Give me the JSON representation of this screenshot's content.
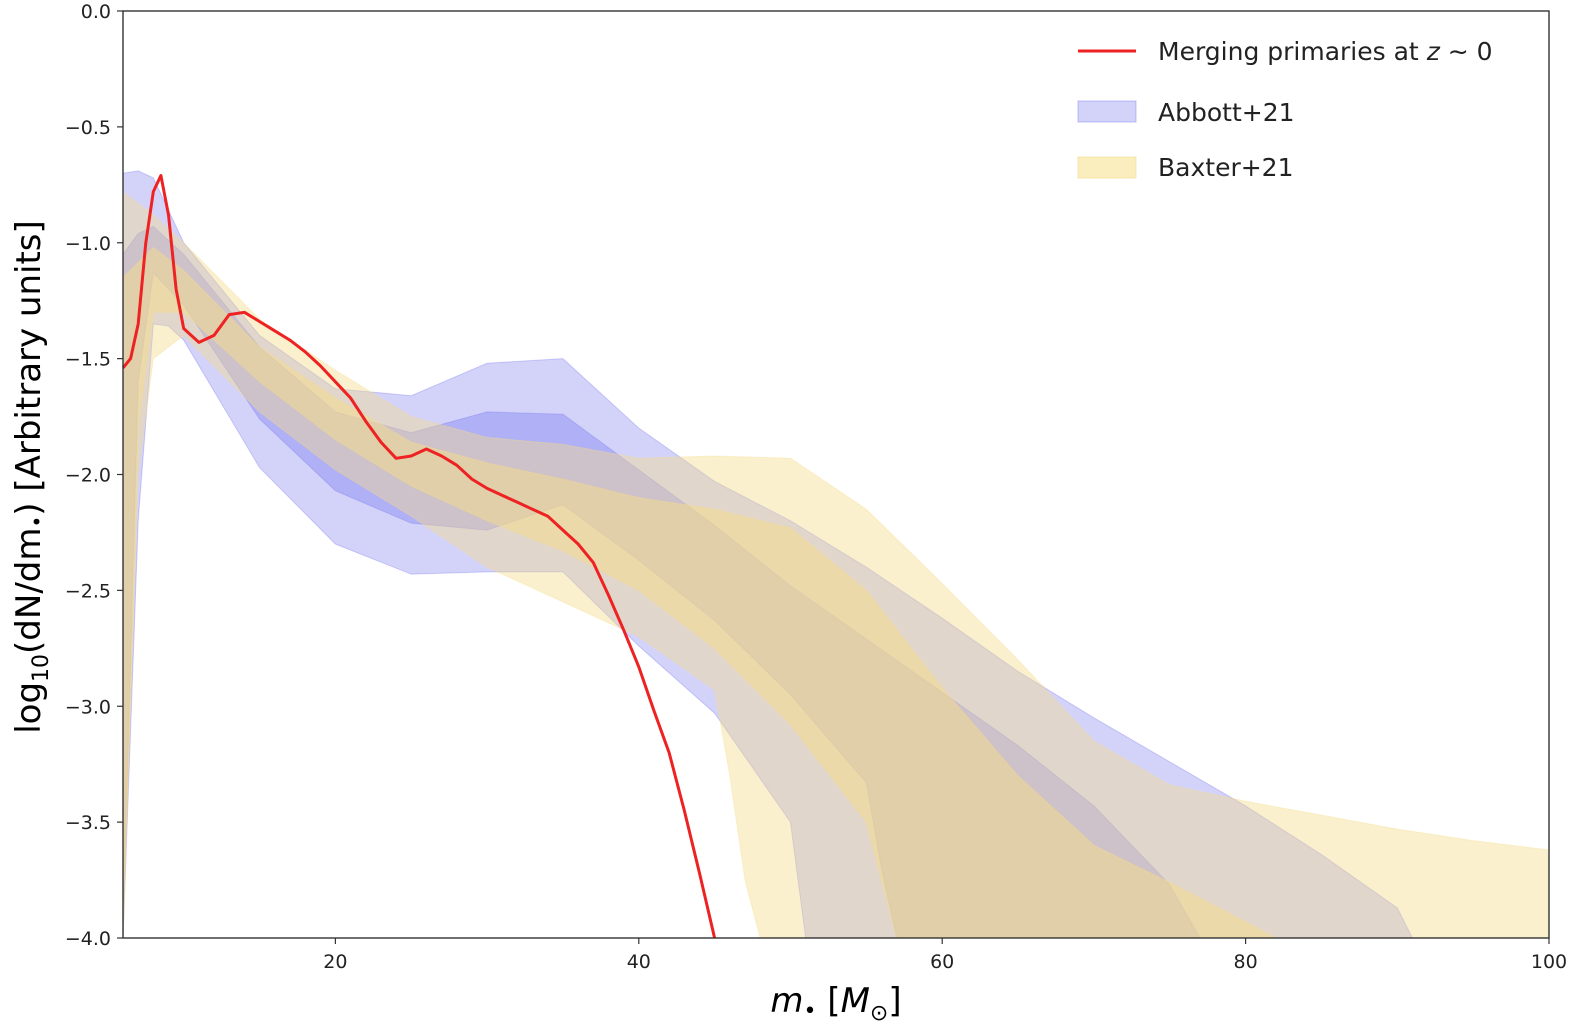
{
  "chart_data": {
    "type": "area",
    "title": "",
    "xlabel_main": "m",
    "xlabel_sub": "•",
    "xlabel_unit_open": " [",
    "xlabel_unit_var": "M",
    "xlabel_unit_sub": "⊙",
    "xlabel_unit_close": "]",
    "ylabel_prefix": "log",
    "ylabel_sub": "10",
    "ylabel_suffix": "(dN/dm",
    "ylabel_dot": "•",
    "ylabel_tail": ") [Arbitrary units]",
    "xlim": [
      6,
      100
    ],
    "ylim": [
      -4.0,
      0.0
    ],
    "xticks": [
      20,
      40,
      60,
      80,
      100
    ],
    "xtick_labels": [
      "20",
      "40",
      "60",
      "80",
      "100"
    ],
    "yticks": [
      0.0,
      -0.5,
      -1.0,
      -1.5,
      -2.0,
      -2.5,
      -3.0,
      -3.5,
      -4.0
    ],
    "ytick_labels": [
      "0.0",
      "−0.5",
      "−1.0",
      "−1.5",
      "−2.0",
      "−2.5",
      "−3.0",
      "−3.5",
      "−4.0"
    ],
    "legend": {
      "position": "top-right",
      "entries": [
        {
          "label_pre": "Merging primaries at ",
          "label_var": "z",
          "label_post": " ∼ 0",
          "kind": "line",
          "color": "#ee2222"
        },
        {
          "label": "Abbott+21",
          "kind": "band",
          "color": "#8080f0"
        },
        {
          "label": "Baxter+21",
          "kind": "band",
          "color": "#f8e7a3"
        }
      ]
    },
    "colors": {
      "abbott": "#7777ee",
      "baxter": "#f5dc8a",
      "line": "#ee2222"
    },
    "series": [
      {
        "name": "Abbott+21 outer band",
        "layer": "abbott",
        "opacity": 0.32,
        "upper": [
          [
            6,
            -0.7
          ],
          [
            7,
            -0.69
          ],
          [
            8,
            -0.72
          ],
          [
            10,
            -1.0
          ],
          [
            15,
            -1.4
          ],
          [
            20,
            -1.63
          ],
          [
            25,
            -1.66
          ],
          [
            30,
            -1.52
          ],
          [
            35,
            -1.5
          ],
          [
            40,
            -1.8
          ],
          [
            45,
            -2.03
          ],
          [
            50,
            -2.2
          ],
          [
            55,
            -2.4
          ],
          [
            60,
            -2.62
          ],
          [
            65,
            -2.85
          ],
          [
            70,
            -3.05
          ],
          [
            75,
            -3.24
          ],
          [
            80,
            -3.43
          ],
          [
            85,
            -3.64
          ],
          [
            90,
            -3.87
          ],
          [
            91,
            -4.0
          ]
        ],
        "lower": [
          [
            6,
            -4.0
          ],
          [
            7,
            -2.2
          ],
          [
            8,
            -1.35
          ],
          [
            9,
            -1.36
          ],
          [
            10,
            -1.42
          ],
          [
            15,
            -1.97
          ],
          [
            20,
            -2.3
          ],
          [
            25,
            -2.43
          ],
          [
            30,
            -2.42
          ],
          [
            35,
            -2.42
          ],
          [
            40,
            -2.74
          ],
          [
            45,
            -3.03
          ],
          [
            50,
            -3.5
          ],
          [
            51,
            -4.0
          ]
        ]
      },
      {
        "name": "Abbott+21 inner band",
        "layer": "abbott",
        "opacity": 0.38,
        "upper": [
          [
            6,
            -1.05
          ],
          [
            7,
            -0.96
          ],
          [
            8,
            -0.93
          ],
          [
            10,
            -1.05
          ],
          [
            15,
            -1.45
          ],
          [
            20,
            -1.73
          ],
          [
            25,
            -1.82
          ],
          [
            30,
            -1.73
          ],
          [
            35,
            -1.74
          ],
          [
            40,
            -1.98
          ],
          [
            45,
            -2.22
          ],
          [
            50,
            -2.48
          ],
          [
            55,
            -2.71
          ],
          [
            60,
            -2.94
          ],
          [
            65,
            -3.17
          ],
          [
            70,
            -3.43
          ],
          [
            75,
            -3.77
          ],
          [
            77,
            -4.0
          ]
        ],
        "lower": [
          [
            6,
            -4.0
          ],
          [
            7,
            -1.6
          ],
          [
            8,
            -1.13
          ],
          [
            10,
            -1.27
          ],
          [
            15,
            -1.76
          ],
          [
            20,
            -2.07
          ],
          [
            25,
            -2.21
          ],
          [
            30,
            -2.24
          ],
          [
            35,
            -2.13
          ],
          [
            40,
            -2.37
          ],
          [
            45,
            -2.63
          ],
          [
            50,
            -2.95
          ],
          [
            55,
            -3.33
          ],
          [
            56,
            -3.7
          ],
          [
            57,
            -4.0
          ]
        ]
      },
      {
        "name": "Baxter+21 outer band",
        "layer": "baxter",
        "opacity": 0.42,
        "upper": [
          [
            6,
            -0.78
          ],
          [
            8,
            -0.88
          ],
          [
            10,
            -1.0
          ],
          [
            15,
            -1.33
          ],
          [
            20,
            -1.55
          ],
          [
            25,
            -1.75
          ],
          [
            30,
            -1.84
          ],
          [
            35,
            -1.87
          ],
          [
            40,
            -1.93
          ],
          [
            45,
            -1.92
          ],
          [
            50,
            -1.93
          ],
          [
            55,
            -2.15
          ],
          [
            60,
            -2.47
          ],
          [
            65,
            -2.8
          ],
          [
            70,
            -3.15
          ],
          [
            75,
            -3.34
          ],
          [
            80,
            -3.41
          ],
          [
            85,
            -3.47
          ],
          [
            90,
            -3.53
          ],
          [
            95,
            -3.58
          ],
          [
            100,
            -3.62
          ],
          [
            100,
            -4.0
          ]
        ],
        "lower": [
          [
            6,
            -4.0
          ],
          [
            7,
            -2.0
          ],
          [
            8,
            -1.5
          ],
          [
            10,
            -1.4
          ],
          [
            15,
            -1.73
          ],
          [
            20,
            -1.98
          ],
          [
            25,
            -2.18
          ],
          [
            30,
            -2.4
          ],
          [
            35,
            -2.55
          ],
          [
            40,
            -2.7
          ],
          [
            45,
            -2.93
          ],
          [
            46,
            -3.3
          ],
          [
            47,
            -3.75
          ],
          [
            48,
            -4.0
          ]
        ]
      },
      {
        "name": "Baxter+21 inner band",
        "layer": "baxter",
        "opacity": 0.5,
        "upper": [
          [
            6,
            -1.15
          ],
          [
            8,
            -1.02
          ],
          [
            10,
            -1.12
          ],
          [
            15,
            -1.45
          ],
          [
            20,
            -1.67
          ],
          [
            25,
            -1.86
          ],
          [
            30,
            -1.95
          ],
          [
            35,
            -2.02
          ],
          [
            40,
            -2.1
          ],
          [
            45,
            -2.15
          ],
          [
            50,
            -2.23
          ],
          [
            55,
            -2.5
          ],
          [
            60,
            -2.92
          ],
          [
            65,
            -3.3
          ],
          [
            70,
            -3.6
          ],
          [
            75,
            -3.76
          ],
          [
            80,
            -3.93
          ],
          [
            82,
            -4.0
          ]
        ],
        "lower": [
          [
            6,
            -4.0
          ],
          [
            7,
            -1.8
          ],
          [
            8,
            -1.3
          ],
          [
            10,
            -1.3
          ],
          [
            15,
            -1.6
          ],
          [
            20,
            -1.85
          ],
          [
            25,
            -2.05
          ],
          [
            30,
            -2.2
          ],
          [
            35,
            -2.33
          ],
          [
            40,
            -2.5
          ],
          [
            45,
            -2.75
          ],
          [
            50,
            -3.08
          ],
          [
            55,
            -3.5
          ],
          [
            56,
            -3.75
          ],
          [
            57,
            -4.0
          ]
        ]
      },
      {
        "name": "Merging primaries at z~0",
        "layer": "line",
        "x": [
          6,
          6.5,
          7,
          7.5,
          8,
          8.5,
          9,
          9.5,
          10,
          11,
          12,
          13,
          14,
          15,
          16,
          17,
          18,
          19,
          20,
          21,
          22,
          23,
          24,
          25,
          26,
          27,
          28,
          29,
          30,
          31,
          32,
          33,
          34,
          35,
          36,
          37,
          38,
          39,
          40,
          41,
          42,
          43,
          44,
          45
        ],
        "y": [
          -1.54,
          -1.5,
          -1.35,
          -1.0,
          -0.78,
          -0.71,
          -0.88,
          -1.2,
          -1.37,
          -1.43,
          -1.4,
          -1.31,
          -1.3,
          -1.34,
          -1.38,
          -1.42,
          -1.47,
          -1.53,
          -1.6,
          -1.67,
          -1.77,
          -1.86,
          -1.93,
          -1.92,
          -1.89,
          -1.92,
          -1.96,
          -2.02,
          -2.06,
          -2.09,
          -2.12,
          -2.15,
          -2.18,
          -2.24,
          -2.3,
          -2.38,
          -2.52,
          -2.67,
          -2.83,
          -3.02,
          -3.2,
          -3.45,
          -3.72,
          -4.0
        ]
      }
    ]
  }
}
